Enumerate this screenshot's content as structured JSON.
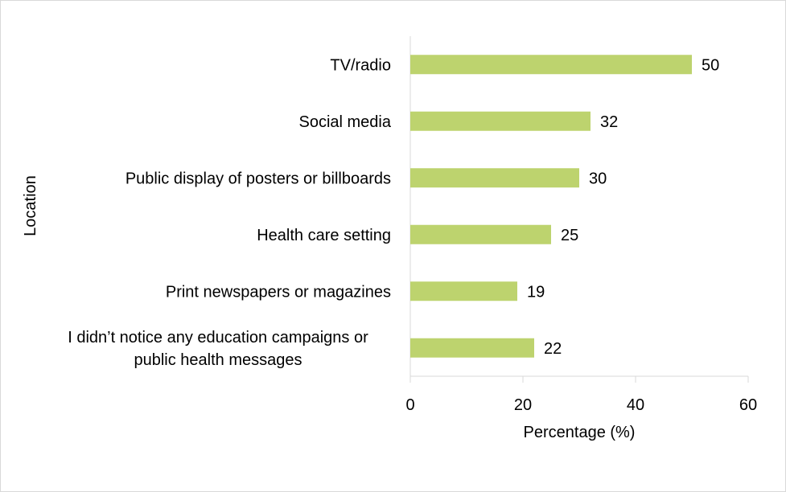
{
  "chart_data": {
    "type": "bar",
    "orientation": "horizontal",
    "title": "",
    "xlabel": "Percentage (%)",
    "ylabel": "Location",
    "xlim": [
      0,
      60
    ],
    "xticks": [
      0,
      20,
      40,
      60
    ],
    "grid": false,
    "legend": "none",
    "bar_color": "#bdd36e",
    "categories": [
      [
        "TV/radio"
      ],
      [
        "Social media"
      ],
      [
        "Public display of posters or billboards"
      ],
      [
        "Health care setting"
      ],
      [
        "Print newspapers or magazines"
      ],
      [
        "I didn’t notice any education campaigns or",
        "public health messages"
      ]
    ],
    "values": [
      50,
      32,
      30,
      25,
      19,
      22
    ]
  }
}
